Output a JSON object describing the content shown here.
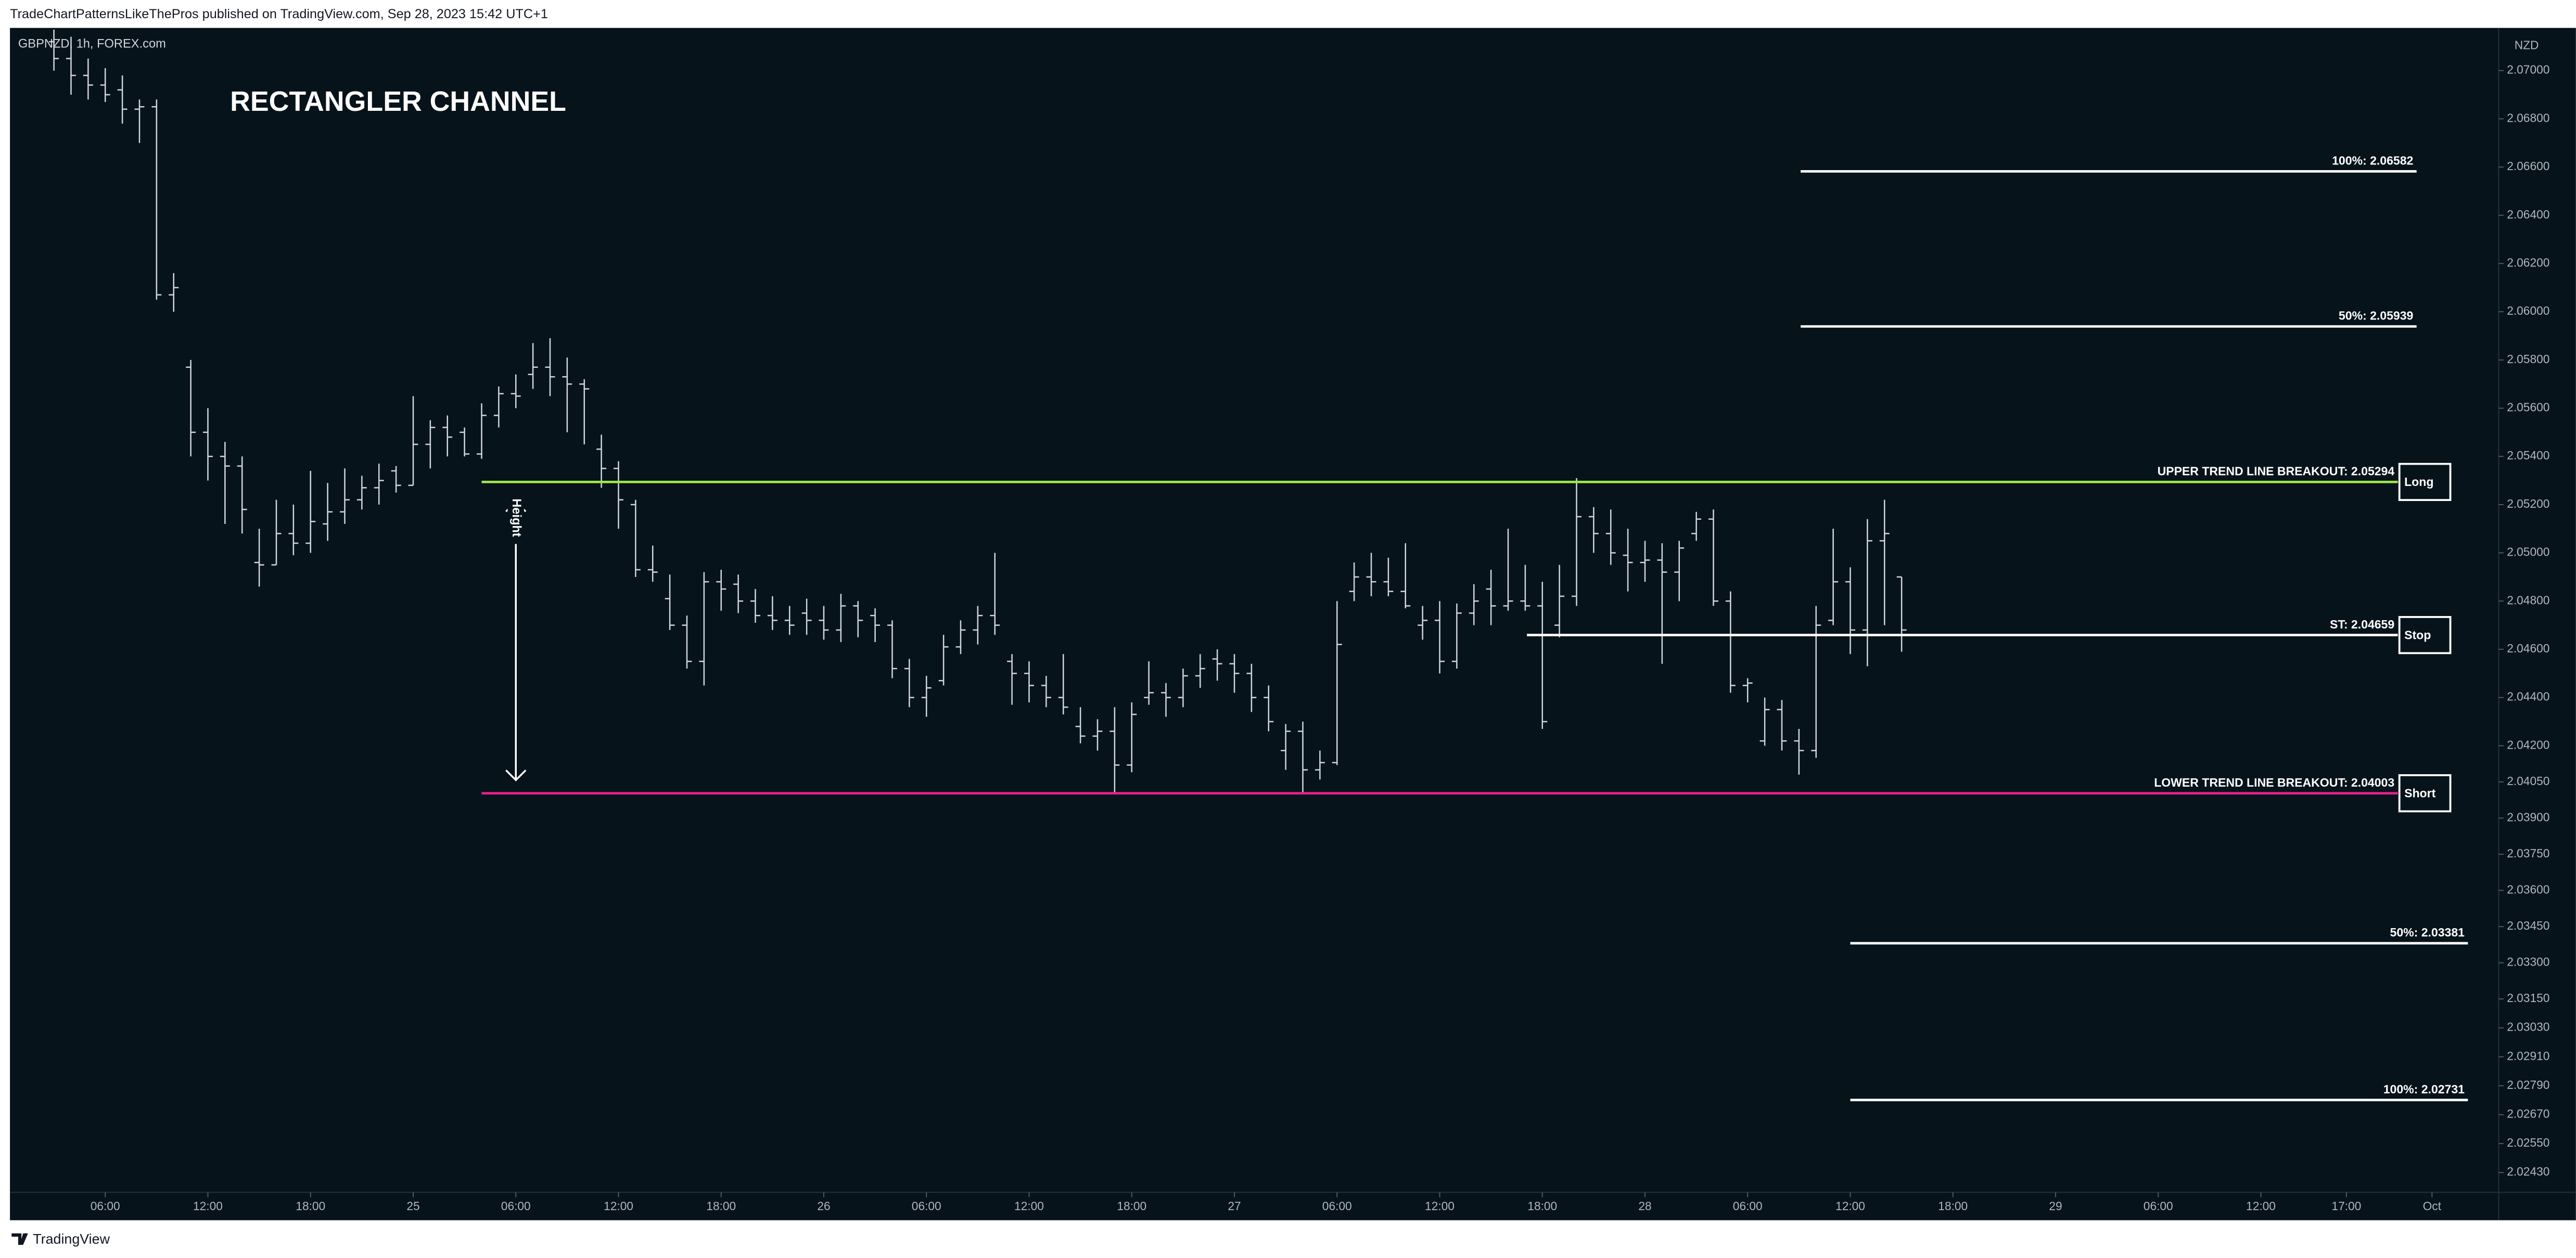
{
  "header": "TradeChartPatternsLikeThePros published on TradingView.com, Sep 28, 2023 15:42 UTC+1",
  "footer": "TradingView",
  "chart_data": {
    "type": "ohlc",
    "symbol": "GBPNZD, 1h, FOREX.com",
    "title": "RECTANGLER CHANNEL",
    "currency": "NZD",
    "color": "#d1d4dc",
    "xlim": [
      0.43,
      145.9
    ],
    "ylim": [
      2.02348,
      2.07177
    ],
    "xticks": [
      {
        "value": 6,
        "label": "06:00"
      },
      {
        "value": 12,
        "label": "12:00"
      },
      {
        "value": 18,
        "label": "18:00"
      },
      {
        "value": 24,
        "label": "25"
      },
      {
        "value": 30,
        "label": "06:00"
      },
      {
        "value": 36,
        "label": "12:00"
      },
      {
        "value": 42,
        "label": "18:00"
      },
      {
        "value": 48,
        "label": "26"
      },
      {
        "value": 54,
        "label": "06:00"
      },
      {
        "value": 60,
        "label": "12:00"
      },
      {
        "value": 66,
        "label": "18:00"
      },
      {
        "value": 72,
        "label": "27"
      },
      {
        "value": 78,
        "label": "06:00"
      },
      {
        "value": 84,
        "label": "12:00"
      },
      {
        "value": 90,
        "label": "18:00"
      },
      {
        "value": 96,
        "label": "28"
      },
      {
        "value": 102,
        "label": "06:00"
      },
      {
        "value": 108,
        "label": "12:00"
      },
      {
        "value": 114,
        "label": "18:00"
      },
      {
        "value": 120,
        "label": "29"
      },
      {
        "value": 126,
        "label": "06:00"
      },
      {
        "value": 132,
        "label": "12:00"
      },
      {
        "value": 137,
        "label": "17:00"
      },
      {
        "value": 142,
        "label": "Oct"
      }
    ],
    "yticks": [
      {
        "value": 2.07,
        "label": "2.07000"
      },
      {
        "value": 2.068,
        "label": "2.06800"
      },
      {
        "value": 2.066,
        "label": "2.06600"
      },
      {
        "value": 2.064,
        "label": "2.06400"
      },
      {
        "value": 2.062,
        "label": "2.06200"
      },
      {
        "value": 2.06,
        "label": "2.06000"
      },
      {
        "value": 2.058,
        "label": "2.05800"
      },
      {
        "value": 2.056,
        "label": "2.05600"
      },
      {
        "value": 2.054,
        "label": "2.05400"
      },
      {
        "value": 2.052,
        "label": "2.05200"
      },
      {
        "value": 2.05,
        "label": "2.05000"
      },
      {
        "value": 2.048,
        "label": "2.04800"
      },
      {
        "value": 2.046,
        "label": "2.04600"
      },
      {
        "value": 2.044,
        "label": "2.04400"
      },
      {
        "value": 2.042,
        "label": "2.04200"
      },
      {
        "value": 2.0405,
        "label": "2.04050"
      },
      {
        "value": 2.039,
        "label": "2.03900"
      },
      {
        "value": 2.0375,
        "label": "2.03750"
      },
      {
        "value": 2.036,
        "label": "2.03600"
      },
      {
        "value": 2.0345,
        "label": "2.03450"
      },
      {
        "value": 2.033,
        "label": "2.03300"
      },
      {
        "value": 2.0315,
        "label": "2.03150"
      },
      {
        "value": 2.0303,
        "label": "2.03030"
      },
      {
        "value": 2.0291,
        "label": "2.02910"
      },
      {
        "value": 2.0279,
        "label": "2.02790"
      },
      {
        "value": 2.0267,
        "label": "2.02670"
      },
      {
        "value": 2.0255,
        "label": "2.02550"
      },
      {
        "value": 2.0243,
        "label": "2.02430"
      }
    ],
    "x": [
      3,
      4,
      5,
      6,
      7,
      8,
      9,
      10,
      11,
      12,
      13,
      14,
      15,
      16,
      17,
      18,
      19,
      20,
      21,
      22,
      23,
      24,
      25,
      26,
      27,
      28,
      29,
      30,
      31,
      32,
      33,
      34,
      35,
      36,
      37,
      38,
      39,
      40,
      41,
      42,
      43,
      44,
      45,
      46,
      47,
      48,
      49,
      50,
      51,
      52,
      53,
      54,
      55,
      56,
      57,
      58,
      59,
      60,
      61,
      62,
      63,
      64,
      65,
      66,
      67,
      68,
      69,
      70,
      71,
      72,
      73,
      74,
      75,
      76,
      77,
      78,
      79,
      80,
      81,
      82,
      83,
      84,
      85,
      86,
      87,
      88,
      89,
      90,
      91,
      92,
      93,
      94,
      95,
      96,
      97,
      98,
      99,
      100,
      101,
      102,
      103,
      104,
      105,
      106,
      107,
      108,
      109,
      110,
      111
    ],
    "ohlc": [
      [
        2.0712,
        2.0717,
        2.07,
        2.0705
      ],
      [
        2.0705,
        2.0714,
        2.069,
        2.0698
      ],
      [
        2.0698,
        2.0705,
        2.0688,
        2.0694
      ],
      [
        2.0694,
        2.0701,
        2.0687,
        2.069
      ],
      [
        2.0692,
        2.0698,
        2.0678,
        2.0684
      ],
      [
        2.0684,
        2.0688,
        2.067,
        2.0685
      ],
      [
        2.0685,
        2.0688,
        2.0605,
        2.0607
      ],
      [
        2.0607,
        2.0616,
        2.06,
        2.061
      ],
      [
        2.0577,
        2.058,
        2.054,
        2.055
      ],
      [
        2.055,
        2.056,
        2.053,
        2.054
      ],
      [
        2.054,
        2.0546,
        2.0512,
        2.0536
      ],
      [
        2.0536,
        2.054,
        2.0508,
        2.0518
      ],
      [
        2.0496,
        2.051,
        2.0486,
        2.0495
      ],
      [
        2.0495,
        2.0522,
        2.0495,
        2.0508
      ],
      [
        2.0508,
        2.052,
        2.0499,
        2.0504
      ],
      [
        2.0504,
        2.0534,
        2.05,
        2.0513
      ],
      [
        2.0512,
        2.0529,
        2.0505,
        2.0517
      ],
      [
        2.0517,
        2.0535,
        2.0512,
        2.0522
      ],
      [
        2.0522,
        2.0532,
        2.0518,
        2.0527
      ],
      [
        2.0527,
        2.0537,
        2.052,
        2.053
      ],
      [
        2.0534,
        2.0536,
        2.0525,
        2.0528
      ],
      [
        2.0528,
        2.0565,
        2.0528,
        2.0545
      ],
      [
        2.0545,
        2.0555,
        2.0535,
        2.0552
      ],
      [
        2.0552,
        2.0557,
        2.054,
        2.0548
      ],
      [
        2.055,
        2.0552,
        2.054,
        2.0541
      ],
      [
        2.0541,
        2.0562,
        2.0539,
        2.0557
      ],
      [
        2.0557,
        2.0569,
        2.0552,
        2.0566
      ],
      [
        2.0566,
        2.0574,
        2.056,
        2.0565
      ],
      [
        2.0574,
        2.0587,
        2.0568,
        2.0577
      ],
      [
        2.0577,
        2.0589,
        2.0565,
        2.0573
      ],
      [
        2.0573,
        2.0581,
        2.055,
        2.057
      ],
      [
        2.057,
        2.0572,
        2.0545,
        2.0568
      ],
      [
        2.0543,
        2.0549,
        2.0527,
        2.0535
      ],
      [
        2.0535,
        2.0538,
        2.051,
        2.0522
      ],
      [
        2.052,
        2.0522,
        2.049,
        2.0493
      ],
      [
        2.0493,
        2.0503,
        2.0488,
        2.0492
      ],
      [
        2.0481,
        2.0491,
        2.0468,
        2.047
      ],
      [
        2.047,
        2.0474,
        2.0452,
        2.0455
      ],
      [
        2.0455,
        2.0492,
        2.0445,
        2.0488
      ],
      [
        2.0488,
        2.0493,
        2.0476,
        2.0485
      ],
      [
        2.0487,
        2.0491,
        2.0475,
        2.048
      ],
      [
        2.048,
        2.0485,
        2.0471,
        2.0474
      ],
      [
        2.0474,
        2.0482,
        2.0468,
        2.0472
      ],
      [
        2.0472,
        2.0478,
        2.0466,
        2.047
      ],
      [
        2.0475,
        2.0481,
        2.0466,
        2.0472
      ],
      [
        2.0472,
        2.0478,
        2.0464,
        2.0468
      ],
      [
        2.0468,
        2.0483,
        2.0463,
        2.0478
      ],
      [
        2.0478,
        2.048,
        2.0465,
        2.0472
      ],
      [
        2.0474,
        2.0477,
        2.0463,
        2.047
      ],
      [
        2.047,
        2.0472,
        2.0448,
        2.0452
      ],
      [
        2.0452,
        2.0456,
        2.0436,
        2.044
      ],
      [
        2.044,
        2.0449,
        2.0432,
        2.0444
      ],
      [
        2.0447,
        2.0466,
        2.0445,
        2.0461
      ],
      [
        2.0461,
        2.0472,
        2.0458,
        2.0468
      ],
      [
        2.0468,
        2.0478,
        2.0462,
        2.0474
      ],
      [
        2.0474,
        2.05,
        2.0466,
        2.047
      ],
      [
        2.0455,
        2.0458,
        2.0437,
        2.045
      ],
      [
        2.045,
        2.0455,
        2.0438,
        2.0445
      ],
      [
        2.0445,
        2.0449,
        2.0436,
        2.044
      ],
      [
        2.044,
        2.0458,
        2.0433,
        2.0436
      ],
      [
        2.0428,
        2.0436,
        2.0421,
        2.0424
      ],
      [
        2.0424,
        2.0431,
        2.0418,
        2.0426
      ],
      [
        2.0426,
        2.0436,
        2.04,
        2.0412
      ],
      [
        2.0412,
        2.0438,
        2.0409,
        2.0433
      ],
      [
        2.044,
        2.0455,
        2.0437,
        2.0442
      ],
      [
        2.0442,
        2.0446,
        2.0432,
        2.044
      ],
      [
        2.044,
        2.0452,
        2.0436,
        2.0449
      ],
      [
        2.0449,
        2.0458,
        2.0444,
        2.0452
      ],
      [
        2.0456,
        2.046,
        2.0447,
        2.0454
      ],
      [
        2.0454,
        2.0458,
        2.0442,
        2.045
      ],
      [
        2.045,
        2.0454,
        2.0434,
        2.044
      ],
      [
        2.044,
        2.0445,
        2.0426,
        2.043
      ],
      [
        2.0418,
        2.0429,
        2.041,
        2.0426
      ],
      [
        2.0426,
        2.043,
        2.04,
        2.041
      ],
      [
        2.041,
        2.0418,
        2.0406,
        2.0413
      ],
      [
        2.0413,
        2.048,
        2.0412,
        2.0462
      ],
      [
        2.0484,
        2.0496,
        2.048,
        2.049
      ],
      [
        2.049,
        2.05,
        2.0482,
        2.0488
      ],
      [
        2.0488,
        2.0498,
        2.0482,
        2.0484
      ],
      [
        2.0484,
        2.0504,
        2.0477,
        2.0478
      ],
      [
        2.047,
        2.0478,
        2.0464,
        2.0472
      ],
      [
        2.0472,
        2.048,
        2.045,
        2.0455
      ],
      [
        2.0455,
        2.0479,
        2.0452,
        2.0475
      ],
      [
        2.0475,
        2.0487,
        2.047,
        2.048
      ],
      [
        2.0485,
        2.0493,
        2.047,
        2.0478
      ],
      [
        2.0478,
        2.051,
        2.0476,
        2.048
      ],
      [
        2.048,
        2.0495,
        2.0476,
        2.0478
      ],
      [
        2.0478,
        2.0488,
        2.0427,
        2.043
      ],
      [
        2.047,
        2.0495,
        2.0465,
        2.0482
      ],
      [
        2.0482,
        2.0531,
        2.0478,
        2.0515
      ],
      [
        2.0515,
        2.0519,
        2.05,
        2.0508
      ],
      [
        2.0508,
        2.0518,
        2.0495,
        2.05
      ],
      [
        2.0499,
        2.051,
        2.0484,
        2.0496
      ],
      [
        2.0496,
        2.0505,
        2.0488,
        2.0497
      ],
      [
        2.0497,
        2.0504,
        2.0454,
        2.0492
      ],
      [
        2.0492,
        2.0505,
        2.048,
        2.0502
      ],
      [
        2.0508,
        2.0517,
        2.0505,
        2.0514
      ],
      [
        2.0514,
        2.0518,
        2.0478,
        2.048
      ],
      [
        2.048,
        2.0484,
        2.0442,
        2.0445
      ],
      [
        2.0445,
        2.0448,
        2.0438,
        2.0446
      ],
      [
        2.0422,
        2.044,
        2.042,
        2.0435
      ],
      [
        2.0435,
        2.0439,
        2.0418,
        2.0422
      ],
      [
        2.0422,
        2.0427,
        2.0408,
        2.0418
      ],
      [
        2.0418,
        2.0478,
        2.0415,
        2.047
      ],
      [
        2.0472,
        2.051,
        2.047,
        2.0488
      ],
      [
        2.0488,
        2.0494,
        2.0458,
        2.0468
      ],
      [
        2.0468,
        2.0514,
        2.0453,
        2.0505
      ],
      [
        2.0505,
        2.0522,
        2.047,
        2.0508
      ],
      [
        2.049,
        2.049,
        2.0459,
        2.0468
      ]
    ],
    "levels": [
      {
        "label": "100%: 2.06582",
        "value": 2.06582,
        "x_start": 105.1,
        "x_end": 141.1,
        "color": "#ffffff"
      },
      {
        "label": "50%: 2.05939",
        "value": 2.05939,
        "x_start": 105.1,
        "x_end": 141.1,
        "color": "#ffffff"
      },
      {
        "label": "UPPER TREND LINE BREAKOUT: 2.05294",
        "value": 2.05294,
        "x_start": 28.0,
        "x_end": 140.0,
        "color": "#9be64b",
        "button": "Long"
      },
      {
        "label": "ST: 2.04659",
        "value": 2.04659,
        "x_start": 89.1,
        "x_end": 140.0,
        "color": "#ffffff",
        "button": "Stop"
      },
      {
        "label": "LOWER TREND LINE BREAKOUT: 2.04003",
        "value": 2.04003,
        "x_start": 28.0,
        "x_end": 140.0,
        "color": "#e91e8c",
        "button": "Short"
      },
      {
        "label": "50%: 2.03381",
        "value": 2.03381,
        "x_start": 108.0,
        "x_end": 144.1,
        "color": "#ffffff"
      },
      {
        "label": "100%: 2.02731",
        "value": 2.02731,
        "x_start": 108.0,
        "x_end": 144.1,
        "color": "#ffffff"
      }
    ],
    "height_arrow": {
      "label": "Height",
      "x": 30
    }
  }
}
